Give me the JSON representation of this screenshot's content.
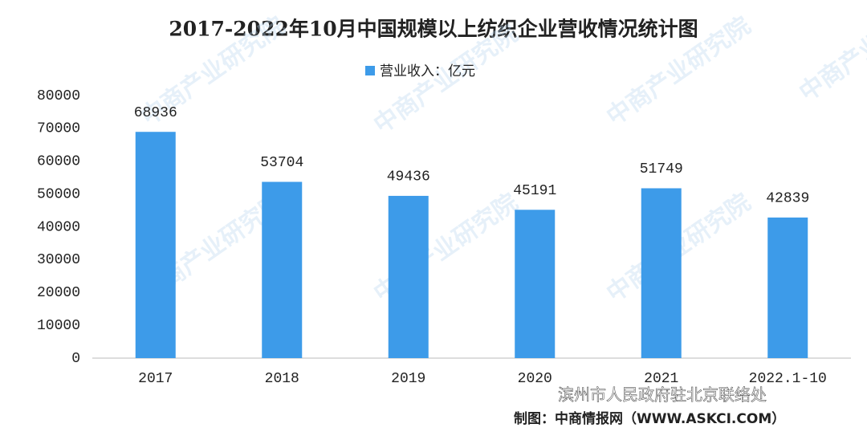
{
  "chart_data": {
    "type": "bar",
    "title": "2017-2022年10月中国规模以上纺织企业营收情况统计图",
    "categories": [
      "2017",
      "2018",
      "2019",
      "2020",
      "2021",
      "2022.1-10"
    ],
    "series": [
      {
        "name": "营业收入：亿元",
        "color": "#3d9be9",
        "values": [
          68936,
          53704,
          49436,
          45191,
          51749,
          42839
        ]
      }
    ],
    "ylim": [
      0,
      80000
    ],
    "yticks": [
      0,
      10000,
      20000,
      30000,
      40000,
      50000,
      60000,
      70000,
      80000
    ],
    "grid": false,
    "legend": "top",
    "source": "制图：中商情报网（WWW.ASKCI.COM）",
    "overlay_text": "滨州市人民政府驻北京联络处",
    "watermark": "中商产业研究院"
  }
}
